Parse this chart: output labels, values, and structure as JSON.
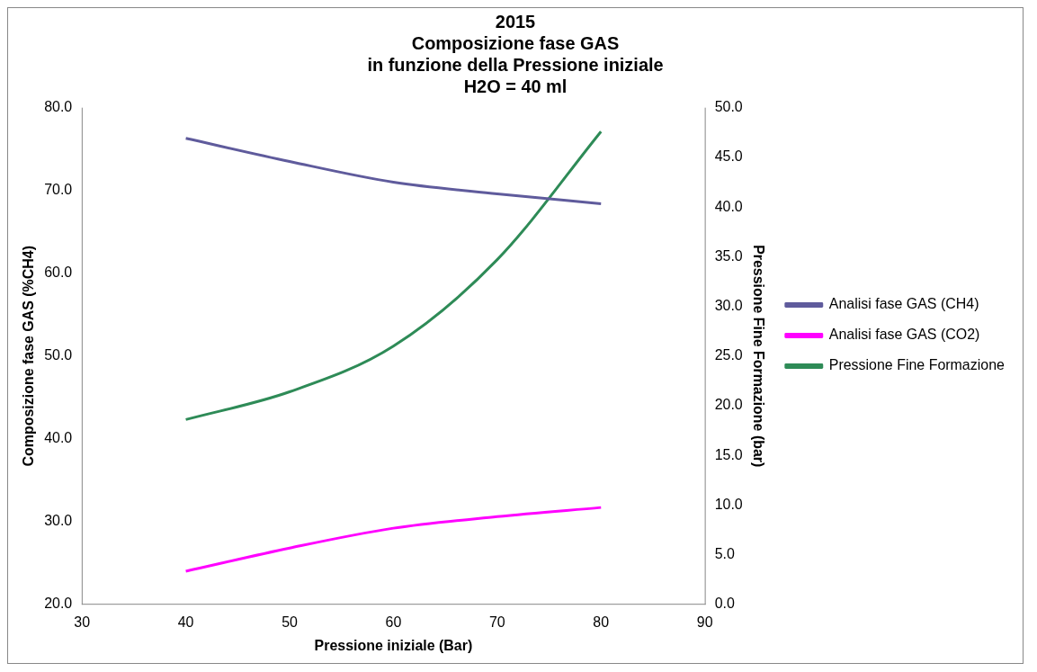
{
  "chart_data": {
    "type": "line",
    "title": "2015\nComposizione fase GAS\nin funzione della Pressione iniziale\nH2O = 40 ml",
    "xlabel": "Pressione iniziale (Bar)",
    "ylabel": "Composizione fase GAS (%CH4)",
    "y2label": "Pressione Fine Formazione (bar)",
    "x": [
      40,
      50,
      60,
      70,
      80
    ],
    "series": [
      {
        "name": "Analisi fase GAS (CH4)",
        "color": "#5f5b9c",
        "values": [
          76.3,
          73.5,
          71.0,
          69.6,
          68.4
        ]
      },
      {
        "name": "Analisi fase GAS (CO2)",
        "color": "#ff00ff",
        "values": [
          24.0,
          26.8,
          29.2,
          30.6,
          31.7
        ]
      },
      {
        "name": "Pressione Fine Formazione",
        "color": "#2e8b57",
        "axis": "y2",
        "values": [
          18.6,
          21.4,
          26.0,
          34.7,
          47.6
        ]
      }
    ],
    "xlim": [
      30,
      90
    ],
    "xticks": [
      30,
      40,
      50,
      60,
      70,
      80,
      90
    ],
    "ylim": [
      20,
      80
    ],
    "yticks": [
      {
        "value": 20,
        "label": "20.0"
      },
      {
        "value": 30,
        "label": "30.0"
      },
      {
        "value": 40,
        "label": "40.0"
      },
      {
        "value": 50,
        "label": "50.0"
      },
      {
        "value": 60,
        "label": "60.0"
      },
      {
        "value": 70,
        "label": "70.0"
      },
      {
        "value": 80,
        "label": "80.0"
      }
    ],
    "y2lim": [
      0,
      50
    ],
    "y2ticks": [
      {
        "value": 0,
        "label": "0.0"
      },
      {
        "value": 5,
        "label": "5.0"
      },
      {
        "value": 10,
        "label": "10.0"
      },
      {
        "value": 15,
        "label": "15.0"
      },
      {
        "value": 20,
        "label": "20.0"
      },
      {
        "value": 25,
        "label": "25.0"
      },
      {
        "value": 30,
        "label": "30.0"
      },
      {
        "value": 35,
        "label": "35.0"
      },
      {
        "value": 40,
        "label": "40.0"
      },
      {
        "value": 45,
        "label": "45.0"
      },
      {
        "value": 50,
        "label": "50.0"
      }
    ],
    "grid": false,
    "legend": "right",
    "marker": "none",
    "line_style": "solid"
  }
}
